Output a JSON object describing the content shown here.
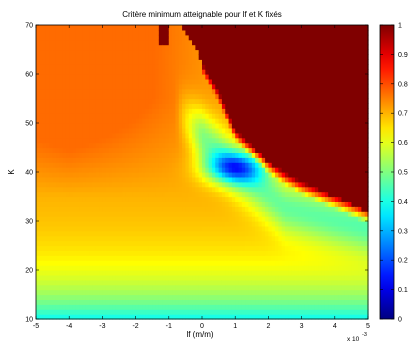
{
  "chart_data": {
    "type": "heatmap",
    "title": "Critère minimum atteignable pour lf et K fixés",
    "xlabel": "lf (m/m)",
    "ylabel": "K",
    "x_scale_note": "x 10",
    "x_scale_exponent": "-3",
    "xlim": [
      -5,
      5
    ],
    "ylim": [
      10,
      70
    ],
    "xticks": [
      "-5",
      "-4",
      "-3",
      "-2",
      "-1",
      "0",
      "1",
      "2",
      "3",
      "4",
      "5"
    ],
    "yticks": [
      "10",
      "20",
      "30",
      "40",
      "50",
      "60",
      "70"
    ],
    "colorbar": {
      "ticks": [
        "0",
        "0.1",
        "0.2",
        "0.3",
        "0.4",
        "0.5",
        "0.6",
        "0.7",
        "0.8",
        "0.9",
        "1"
      ],
      "range": [
        0,
        1
      ],
      "colormap": "jet"
    },
    "features": {
      "saturated_boundary": {
        "value": 1,
        "K_at_lf": [
          [
            -0.6,
            70
          ],
          [
            0.5,
            57
          ],
          [
            1,
            49
          ],
          [
            2,
            42
          ],
          [
            3,
            38
          ],
          [
            4,
            35
          ],
          [
            4.5,
            33.5
          ],
          [
            5,
            32
          ]
        ]
      },
      "minimum": {
        "lf": 1.0,
        "K": 41,
        "value": 0.15
      },
      "min_valley": {
        "points": [
          [
            -0.4,
            50
          ],
          [
            1.0,
            41
          ],
          [
            2.5,
            33
          ],
          [
            4.0,
            30.5
          ],
          [
            5.0,
            29
          ]
        ],
        "value": 0.5
      },
      "top_left_region": {
        "lf": -4.0,
        "K": 65,
        "value": 0.77
      },
      "bottom_band": {
        "K": 11,
        "value": 0.38
      }
    },
    "grid": false,
    "legend": "none"
  }
}
